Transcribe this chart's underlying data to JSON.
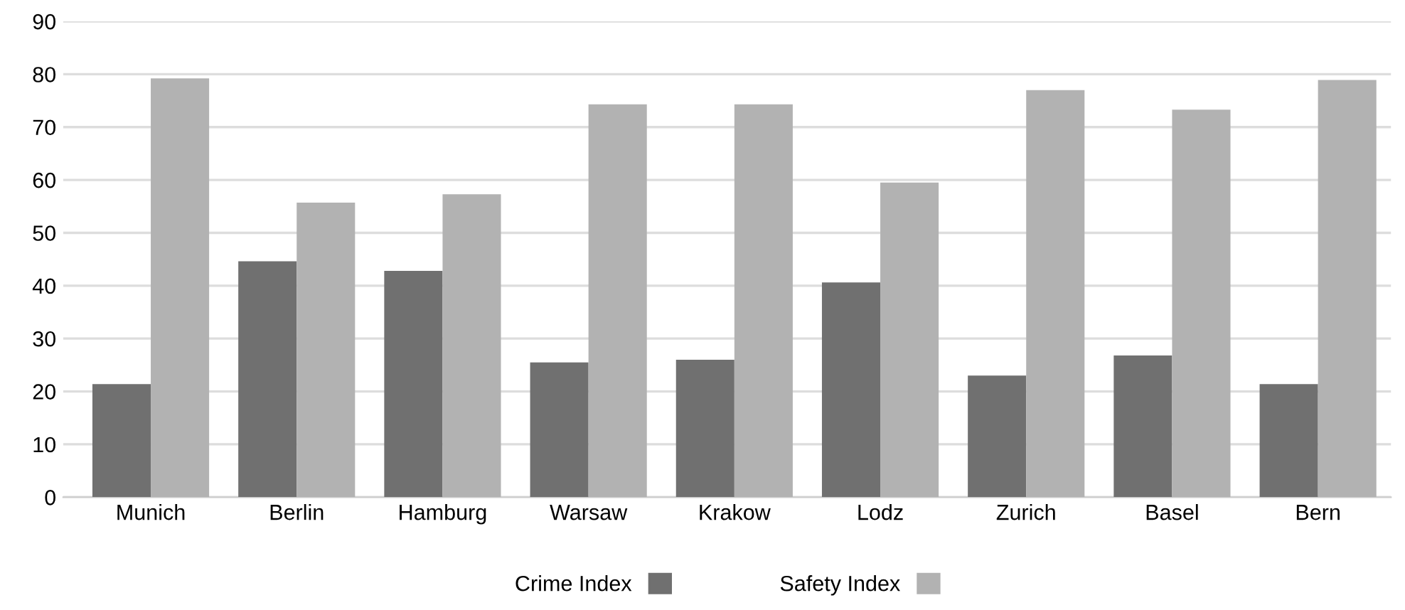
{
  "chart_data": {
    "type": "bar",
    "categories": [
      "Munich",
      "Berlin",
      "Hamburg",
      "Warsaw",
      "Krakow",
      "Lodz",
      "Zurich",
      "Basel",
      "Bern"
    ],
    "series": [
      {
        "name": "Crime Index",
        "color": "#707070",
        "values": [
          21.4,
          44.6,
          42.8,
          25.5,
          26.0,
          40.6,
          23.0,
          26.8,
          21.4
        ]
      },
      {
        "name": "Safety Index",
        "color": "#b2b2b2",
        "values": [
          79.2,
          55.7,
          57.3,
          74.3,
          74.3,
          59.5,
          77.0,
          73.3,
          78.9
        ]
      }
    ],
    "ylim": [
      0,
      90
    ],
    "yticks": [
      0,
      10,
      20,
      30,
      40,
      50,
      60,
      70,
      80,
      90
    ],
    "grid": "y",
    "legend": "bottom"
  }
}
